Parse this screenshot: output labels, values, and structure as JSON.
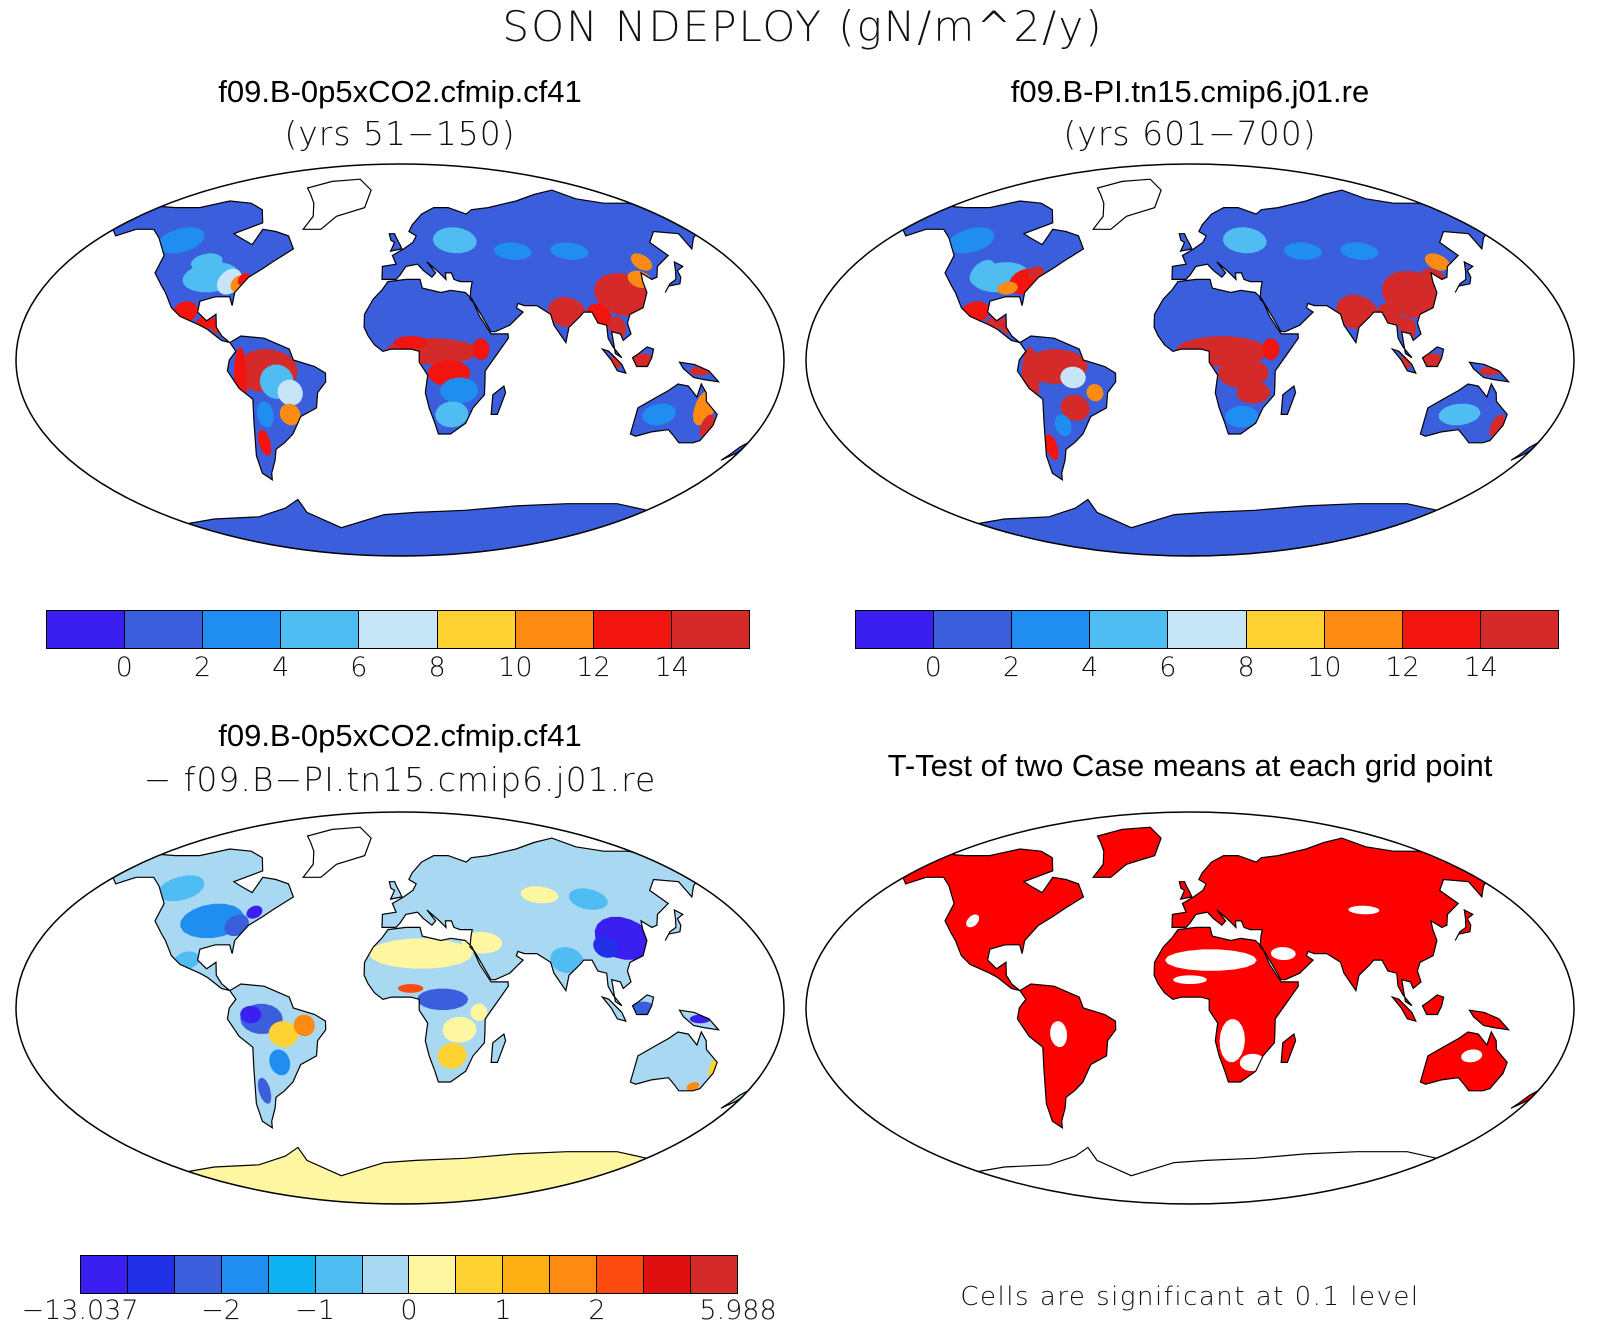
{
  "title": "SON NDEPLOY (gN/m^2/y)",
  "panels": [
    {
      "id": "top-left",
      "title": "f09.B-0p5xCO2.cfmip.cf41",
      "subtitle": "(yrs 51−150)"
    },
    {
      "id": "top-right",
      "title": "f09.B-PI.tn15.cmip6.j01.re",
      "subtitle": "(yrs 601−700)"
    },
    {
      "id": "bottom-left",
      "title": "f09.B-0p5xCO2.cfmip.cf41",
      "subtitle": "− f09.B−PI.tn15.cmip6.j01.re"
    },
    {
      "id": "bottom-right",
      "title": "T-Test of two Case means at each grid point",
      "note": "Cells are significant at 0.1 level"
    }
  ],
  "colorbars": {
    "absolute": {
      "colors": [
        "#3a1ff0",
        "#3a5edc",
        "#1f8ef0",
        "#4fbdf2",
        "#c6e6f8",
        "#fdd232",
        "#fd8a12",
        "#f2150f",
        "#d52a2a"
      ],
      "ticks": [
        "0",
        "2",
        "4",
        "6",
        "8",
        "10",
        "12",
        "14"
      ]
    },
    "difference": {
      "colors": [
        "#3a1ff0",
        "#2230e8",
        "#3a5edc",
        "#1f8ef0",
        "#0eb2f0",
        "#4fbdf2",
        "#a8d8f2",
        "#fef6a0",
        "#fdd232",
        "#fcae12",
        "#fd8a12",
        "#fd4a10",
        "#e01010",
        "#d52a2a"
      ],
      "ticks": [
        "−13.037",
        "−2",
        "−1",
        "0",
        "1",
        "2",
        "5.988"
      ]
    }
  },
  "map_colors": {
    "ocean": "#ffffff",
    "coast": "#000000",
    "significant": "#ff0000"
  }
}
